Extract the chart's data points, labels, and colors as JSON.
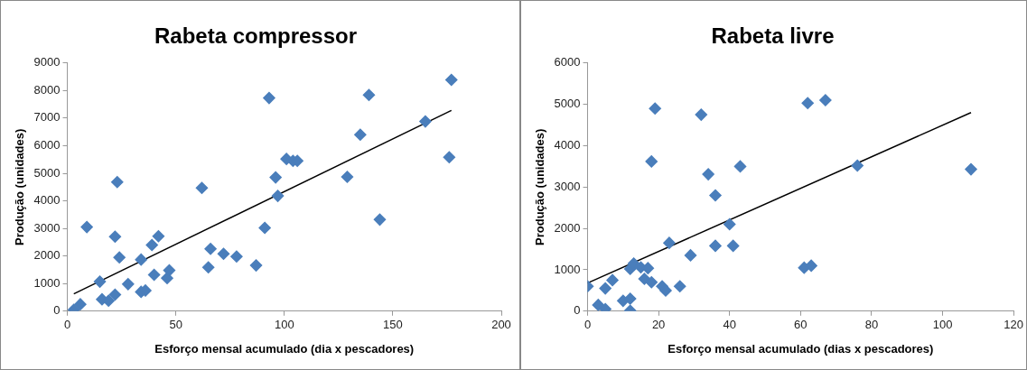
{
  "chart_data": [
    {
      "type": "scatter",
      "title": "Rabeta compressor",
      "xlabel": "Esforço mensal acumulado (dia x pescadores)",
      "ylabel": "Produção (unidades)",
      "xlim": [
        0,
        200
      ],
      "xticks": [
        0,
        50,
        100,
        150,
        200
      ],
      "ylim": [
        0,
        9000
      ],
      "yticks": [
        0,
        1000,
        2000,
        3000,
        4000,
        5000,
        6000,
        7000,
        8000,
        9000
      ],
      "grid": false,
      "legend": false,
      "marker": "diamond",
      "series": [
        {
          "color": "#4a7ebb",
          "x": [
            3,
            6,
            9,
            15,
            16,
            19,
            22,
            22,
            23,
            24,
            28,
            34,
            34,
            36,
            39,
            40,
            42,
            46,
            47,
            62,
            65,
            66,
            72,
            78,
            87,
            91,
            93,
            96,
            97,
            101,
            104,
            106,
            129,
            135,
            139,
            144,
            165,
            176,
            177
          ],
          "values": [
            50,
            250,
            3050,
            1070,
            430,
            380,
            2700,
            600,
            4680,
            1950,
            980,
            700,
            1870,
            750,
            2400,
            1320,
            2720,
            1200,
            1480,
            4470,
            1590,
            2260,
            2080,
            1980,
            1660,
            3020,
            7730,
            4850,
            4180,
            5520,
            5450,
            5450,
            4870,
            6400,
            7840,
            3320,
            6880,
            5580,
            8390
          ]
        },
        {
          "type": "line",
          "color": "#000000",
          "marker": "none",
          "x": [
            3,
            177
          ],
          "values": [
            630,
            7280
          ]
        }
      ]
    },
    {
      "type": "scatter",
      "title": "Rabeta livre",
      "xlabel": "Esforço mensal acumulado (dias x pescadores)",
      "ylabel": "Produção (unidades)",
      "xlim": [
        0,
        120
      ],
      "xticks": [
        0,
        20,
        40,
        60,
        80,
        100,
        120
      ],
      "ylim": [
        0,
        6000
      ],
      "yticks": [
        0,
        1000,
        2000,
        3000,
        4000,
        5000,
        6000
      ],
      "grid": false,
      "legend": false,
      "marker": "diamond",
      "series": [
        {
          "color": "#4a7ebb",
          "x": [
            0,
            3,
            5,
            5,
            7,
            10,
            12,
            12,
            12,
            13,
            15,
            16,
            17,
            18,
            18,
            19,
            21,
            22,
            23,
            26,
            29,
            32,
            34,
            36,
            36,
            40,
            41,
            43,
            61,
            62,
            63,
            67,
            76,
            108
          ],
          "values": [
            600,
            150,
            550,
            50,
            750,
            250,
            1020,
            300,
            10,
            1150,
            1060,
            780,
            1040,
            700,
            3620,
            4900,
            600,
            500,
            1650,
            600,
            1350,
            4750,
            3310,
            2800,
            1580,
            2100,
            1580,
            3500,
            1050,
            5030,
            1100,
            5100,
            3520,
            3430
          ]
        },
        {
          "type": "line",
          "color": "#000000",
          "marker": "none",
          "x": [
            0,
            108
          ],
          "values": [
            680,
            4800
          ]
        }
      ]
    }
  ]
}
